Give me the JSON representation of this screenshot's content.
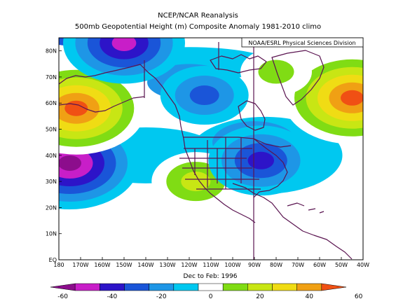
{
  "titles": {
    "line1": "NCEP/NCAR Reanalysis",
    "line2": "500mb Geopotential Height (m) Composite Anomaly 1981-2010 climo",
    "credit": "NOAA/ESRL Physical Sciences Division",
    "period": "Dec to Feb: 1996"
  },
  "colors": {
    "-60": "#8c0d8c",
    "-50": "#c81ec8",
    "-40": "#2d14c8",
    "-30": "#1a55d8",
    "-20": "#1e96e6",
    "-10": "#00c8f0",
    "0": "#ffffff",
    "10": "#ffffff",
    "20": "#80dc14",
    "30": "#c8e614",
    "40": "#f0dc14",
    "50": "#f0a014",
    "60": "#f05014",
    "boundary": "#5a1450"
  },
  "chart_data": {
    "type": "heatmap",
    "title": "500mb Geopotential Height (m) Composite Anomaly 1981-2010 climo",
    "subtitle": "Dec to Feb: 1996",
    "lon_ticks": [
      "180",
      "170W",
      "160W",
      "150W",
      "140W",
      "130W",
      "120W",
      "110W",
      "100W",
      "90W",
      "80W",
      "70W",
      "60W",
      "50W",
      "40W"
    ],
    "lat_ticks": [
      "EQ",
      "10N",
      "20N",
      "30N",
      "40N",
      "50N",
      "60N",
      "70N",
      "80N"
    ],
    "xlim": [
      -180,
      -40
    ],
    "ylim": [
      0,
      85
    ],
    "colorbar": {
      "labels": [
        "-60",
        "-40",
        "-20",
        "0",
        "20",
        "40",
        "60"
      ],
      "levels": [
        -60,
        -50,
        -40,
        -30,
        -20,
        -10,
        0,
        10,
        20,
        30,
        40,
        50,
        60
      ]
    },
    "anomaly_centers": [
      {
        "lon": -175,
        "lat": 37,
        "value": -60
      },
      {
        "lon": -172,
        "lat": 58,
        "value": 60
      },
      {
        "lon": -117,
        "lat": 30,
        "value": 30
      },
      {
        "lon": -45,
        "lat": 62,
        "value": 60
      },
      {
        "lon": -87,
        "lat": 38,
        "value": -40
      },
      {
        "lon": -150,
        "lat": 83,
        "value": -50
      },
      {
        "lon": -113,
        "lat": 63,
        "value": -30
      },
      {
        "lon": -80,
        "lat": 72,
        "value": 20
      }
    ]
  }
}
